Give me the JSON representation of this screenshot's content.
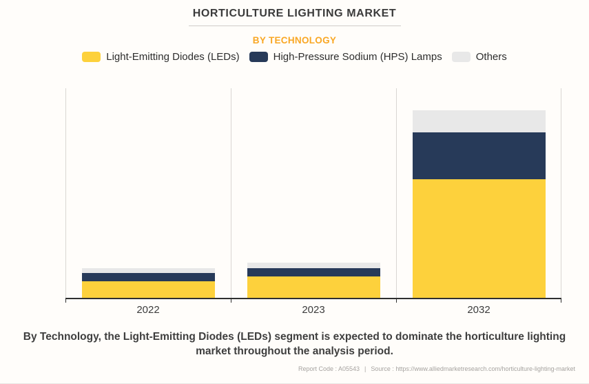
{
  "header": {
    "title": "HORTICULTURE LIGHTING MARKET",
    "subtitle": "BY TECHNOLOGY"
  },
  "theme": {
    "background": "#FFFDFA",
    "accent_orange": "#F9A724",
    "axis_color": "#2F2F2F",
    "gridline_color": "#D9D6D2",
    "title_color": "#3B3B3B",
    "footer_text_color": "#A6A3A0"
  },
  "chart_data": {
    "type": "bar",
    "stacked": true,
    "title": "HORTICULTURE LIGHTING MARKET",
    "subtitle": "BY TECHNOLOGY",
    "categories": [
      "2022",
      "2023",
      "2032"
    ],
    "series": [
      {
        "name": "Light-Emitting Diodes (LEDs)",
        "color": "#FDD13C",
        "values": [
          7.8,
          10.1,
          56.2
        ]
      },
      {
        "name": "High-Pressure Sodium (HPS) Lamps",
        "color": "#273A59",
        "values": [
          3.9,
          3.9,
          22.2
        ]
      },
      {
        "name": "Others",
        "color": "#E8E8E8",
        "values": [
          2.3,
          2.6,
          10.5
        ]
      }
    ],
    "value_units": "estimated % of plot height (y-axis unlabeled in source image)",
    "ylim": [
      0,
      100
    ],
    "xlabel": "",
    "ylabel": "",
    "grid": "vertical category separator lines only; no horizontal gridlines; no y-axis tick labels",
    "legend_position": "top"
  },
  "caption": "By Technology, the Light-Emitting Diodes (LEDs) segment is expected to dominate the horticulture lighting market throughout the analysis period.",
  "footer": {
    "report_code": "Report Code : A05543",
    "separator": "|",
    "source": "Source : https://www.alliedmarketresearch.com/horticulture-lighting-market"
  }
}
